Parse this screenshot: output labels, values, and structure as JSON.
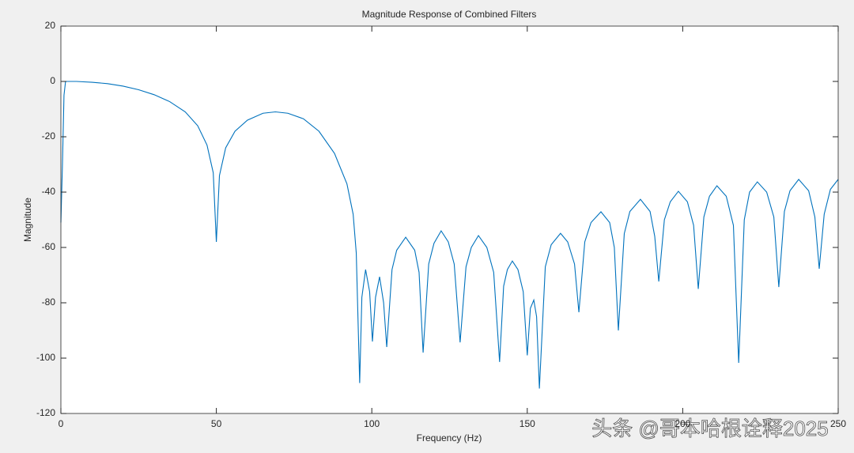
{
  "chart_data": {
    "type": "line",
    "title": "Magnitude Response of Combined Filters",
    "x_label": "Frequency (Hz)",
    "y_label": "Magnitude",
    "xlim": [
      0,
      250
    ],
    "ylim": [
      -120,
      20
    ],
    "xticks": [
      0,
      50,
      100,
      150,
      200,
      250
    ],
    "yticks": [
      -120,
      -100,
      -80,
      -60,
      -40,
      -20,
      0,
      20
    ],
    "grid": false,
    "annotation": "头条 @哥本哈根诠释2025",
    "series": [
      {
        "name": "Magnitude",
        "color": "#0072bd",
        "x": [
          0,
          0.5,
          1,
          1.5,
          5,
          10,
          15,
          20,
          25,
          30,
          35,
          40,
          44,
          47,
          49,
          50,
          51,
          53,
          56,
          60,
          65,
          69,
          73,
          78,
          83,
          88,
          92,
          94,
          95,
          96.1,
          96.8,
          98,
          99.3,
          100.2,
          101.2,
          102.5,
          103.8,
          104.8,
          106.5,
          108,
          110.9,
          113.8,
          115.2,
          116.5,
          118.3,
          120,
          122.3,
          124.6,
          126.5,
          128.4,
          130.3,
          132,
          134.3,
          137,
          139.2,
          141.1,
          142.4,
          143.6,
          145.2,
          147,
          148.7,
          150,
          151,
          152.1,
          153,
          153.9,
          155.8,
          157.7,
          160.7,
          163,
          165.2,
          166.6,
          168.5,
          170.5,
          173.7,
          176.5,
          178,
          179.3,
          181.2,
          183,
          186.4,
          189.5,
          191,
          192.3,
          194.1,
          196,
          198.6,
          201.5,
          203.5,
          205,
          206.8,
          208.6,
          211,
          214,
          216.3,
          218,
          219.8,
          221.5,
          224,
          227,
          229.3,
          230.9,
          232.7,
          234.5,
          237.3,
          240.5,
          242.5,
          243.9,
          245.5,
          247.5,
          250
        ],
        "values": [
          -51,
          -30,
          -5,
          0,
          0,
          -0.3,
          -0.8,
          -1.7,
          -3,
          -4.8,
          -7.3,
          -11,
          -16,
          -23,
          -33,
          -58,
          -34,
          -24,
          -18,
          -14,
          -11.5,
          -11,
          -11.5,
          -13.5,
          -18,
          -26,
          -37,
          -48,
          -62,
          -109,
          -78,
          -68,
          -76,
          -94,
          -78,
          -70.6,
          -80,
          -96,
          -68,
          -61,
          -56.3,
          -61,
          -69,
          -98,
          -66,
          -58.5,
          -54,
          -58,
          -66,
          -94.3,
          -67,
          -60,
          -55.7,
          -60,
          -69,
          -101.4,
          -74,
          -68,
          -64.9,
          -68,
          -76,
          -99,
          -82,
          -79,
          -85,
          -111,
          -67,
          -59,
          -54.9,
          -58,
          -66,
          -83.4,
          -58,
          -51,
          -47.1,
          -51,
          -60,
          -90,
          -55,
          -47,
          -42.6,
          -47,
          -56,
          -72.3,
          -50,
          -43.5,
          -39.7,
          -43.5,
          -52,
          -75,
          -49,
          -41.5,
          -37.7,
          -41.5,
          -52,
          -101.7,
          -50,
          -40,
          -36.3,
          -40,
          -49,
          -74.3,
          -47,
          -39.5,
          -35.4,
          -39.5,
          -49,
          -67.7,
          -48,
          -39,
          -35.4
        ]
      }
    ]
  }
}
